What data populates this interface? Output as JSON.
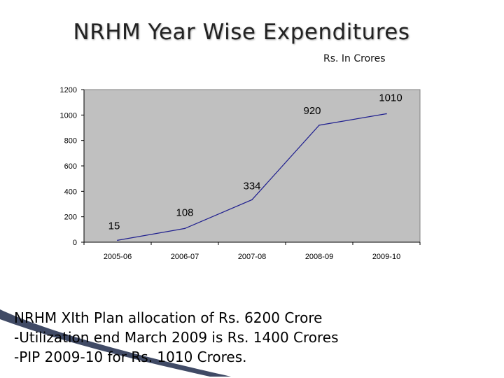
{
  "slide": {
    "title": "NRHM Year Wise Expenditures",
    "units": "Rs. In Crores",
    "notes": [
      "NRHM XIth Plan allocation of Rs. 6200 Crore",
      "-Utilization end March 2009 is Rs. 1400 Crores",
      "-PIP 2009-10 for Rs. 1010 Crores."
    ]
  },
  "chart_data": {
    "type": "line",
    "categories": [
      "2005-06",
      "2006-07",
      "2007-08",
      "2008-09",
      "2009-10"
    ],
    "series": [
      {
        "values": [
          15,
          108,
          334,
          920,
          1010
        ]
      }
    ],
    "data_labels": [
      "15",
      "108",
      "334",
      "920",
      "1010"
    ],
    "yticks": [
      0,
      200,
      400,
      600,
      800,
      1000,
      1200
    ],
    "ylim": [
      0,
      1200
    ],
    "plot_background": "#c0c0c0",
    "line_color": "#1f1f8f",
    "grid": false,
    "legend": "none"
  }
}
